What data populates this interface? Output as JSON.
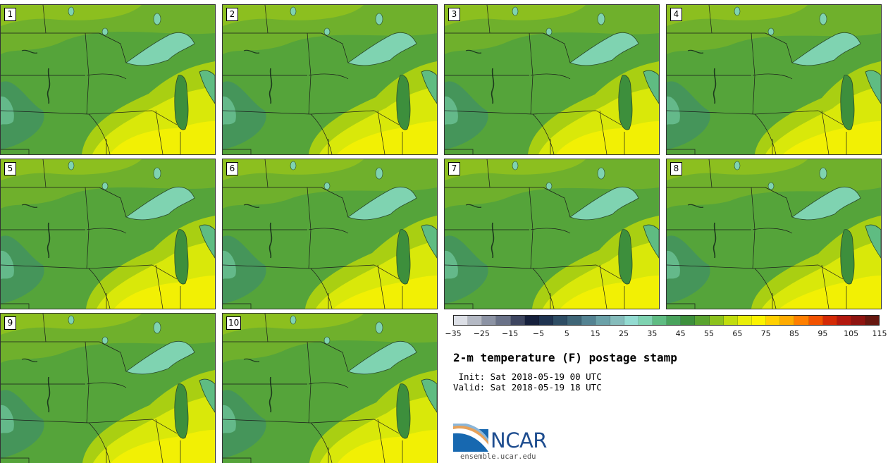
{
  "panels": [
    {
      "label": "1",
      "variant": 0
    },
    {
      "label": "2",
      "variant": 1
    },
    {
      "label": "3",
      "variant": 2
    },
    {
      "label": "4",
      "variant": 3
    },
    {
      "label": "5",
      "variant": 4
    },
    {
      "label": "6",
      "variant": 5
    },
    {
      "label": "7",
      "variant": 6
    },
    {
      "label": "8",
      "variant": 7
    },
    {
      "label": "9",
      "variant": 8
    },
    {
      "label": "10",
      "variant": 9
    }
  ],
  "colorbar": {
    "colors": [
      "#dcdfe6",
      "#b4b9c4",
      "#8c93a4",
      "#6a7288",
      "#3e4660",
      "#16203c",
      "#1f3350",
      "#2e4d64",
      "#3f6677",
      "#548392",
      "#6ba1a8",
      "#85bcbb",
      "#93dbd1",
      "#7fd3b1",
      "#5fbc82",
      "#49a35c",
      "#3d8f3c",
      "#5aa42f",
      "#8cc21d",
      "#c1dd0e",
      "#e9ee08",
      "#fcf300",
      "#ffd000",
      "#ffab00",
      "#ff7f00",
      "#f25200",
      "#d42a06",
      "#b2180e",
      "#8e1410",
      "#66170f"
    ],
    "tick_labels": [
      "-35",
      "-25",
      "-15",
      "-5",
      "5",
      "15",
      "25",
      "35",
      "45",
      "55",
      "65",
      "75",
      "85",
      "95",
      "105",
      "115"
    ]
  },
  "title": "2-m temperature (F) postage stamp",
  "init_line": " Init: Sat 2018-05-19 00 UTC",
  "valid_line": "Valid: Sat 2018-05-19 18 UTC",
  "logo": {
    "text": "NCAR",
    "url": "ensemble.ucar.edu"
  }
}
